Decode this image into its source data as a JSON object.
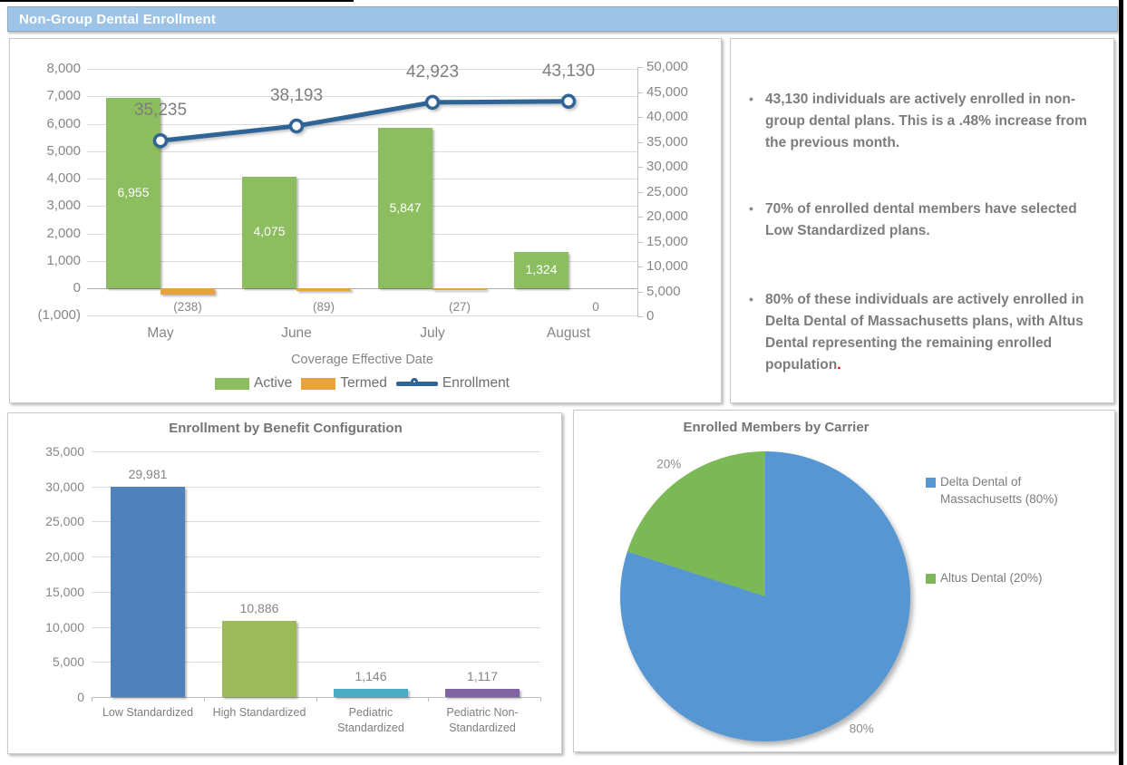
{
  "header": {
    "title": "Non-Group Dental Enrollment"
  },
  "colors": {
    "header_bg": "#9DC3E6",
    "active_green": "#8CBD5E",
    "termed_orange": "#E8A33D",
    "enrollment_line_blue": "#2E6496",
    "config_bar_colors": [
      "#4F81BD",
      "#9BBB59",
      "#4BACC6",
      "#8064A2"
    ],
    "pie_blue": "#5596D3",
    "pie_green": "#7BB957"
  },
  "chart_data": [
    {
      "id": "enrollment_combo",
      "type": "bar+line",
      "categories": [
        "May",
        "June",
        "July",
        "August"
      ],
      "series": [
        {
          "name": "Active",
          "type": "bar",
          "color": "#8CBD5E",
          "values": [
            6955,
            4075,
            5847,
            1324
          ],
          "labels": [
            "6,955",
            "4,075",
            "5,847",
            "1,324"
          ]
        },
        {
          "name": "Termed",
          "type": "bar",
          "color": "#E8A33D",
          "values": [
            -238,
            -89,
            -27,
            0
          ],
          "labels": [
            "(238)",
            "(89)",
            "(27)",
            "0"
          ]
        },
        {
          "name": "Enrollment",
          "type": "line",
          "color": "#2E6496",
          "values": [
            35235,
            38193,
            42923,
            43130
          ],
          "labels": [
            "35,235",
            "38,193",
            "42,923",
            "43,130"
          ]
        }
      ],
      "left_axis": {
        "min": -1000,
        "max": 8000,
        "step": 1000,
        "ticks": [
          "8,000",
          "7,000",
          "6,000",
          "5,000",
          "4,000",
          "3,000",
          "2,000",
          "1,000",
          "0",
          "(1,000)"
        ]
      },
      "right_axis": {
        "min": 0,
        "max": 50000,
        "step": 5000,
        "ticks": [
          "50,000",
          "45,000",
          "40,000",
          "35,000",
          "30,000",
          "25,000",
          "20,000",
          "15,000",
          "10,000",
          "5,000",
          "0"
        ]
      },
      "xlabel": "Coverage Effective Date",
      "legend_position": "bottom",
      "grid": true
    },
    {
      "id": "benefit_config",
      "type": "bar",
      "title": "Enrollment by Benefit Configuration",
      "categories": [
        "Low Standardized",
        "High Standardized",
        "Pediatric\nStandardized",
        "Pediatric Non-\nStandardized"
      ],
      "values": [
        29981,
        10886,
        1146,
        1117
      ],
      "labels": [
        "29,981",
        "10,886",
        "1,146",
        "1,117"
      ],
      "colors": [
        "#4F81BD",
        "#9BBB59",
        "#4BACC6",
        "#8064A2"
      ],
      "yaxis": {
        "min": 0,
        "max": 35000,
        "step": 5000,
        "ticks": [
          "35,000",
          "30,000",
          "25,000",
          "20,000",
          "15,000",
          "10,000",
          "5,000",
          "0"
        ]
      },
      "grid": true
    },
    {
      "id": "carrier_pie",
      "type": "pie",
      "title": "Enrolled Members by Carrier",
      "slices": [
        {
          "label": "Delta Dental of Massachusetts (80%)",
          "value": 80,
          "color": "#5596D3",
          "pct_label": "80%"
        },
        {
          "label": "Altus Dental (20%)",
          "value": 20,
          "color": "#7BB957",
          "pct_label": "20%"
        }
      ],
      "legend_position": "right"
    }
  ],
  "insights": {
    "bullets": [
      {
        "text": "43,130 individuals are actively enrolled in non-group dental plans. This is a .48% increase from the previous month."
      },
      {
        "text": "70% of enrolled dental members have selected Low Standardized plans."
      },
      {
        "text": "80% of these individuals are actively enrolled in Delta Dental of Massachusetts plans, with Altus Dental representing the remaining enrolled population",
        "red_period": "."
      }
    ]
  }
}
